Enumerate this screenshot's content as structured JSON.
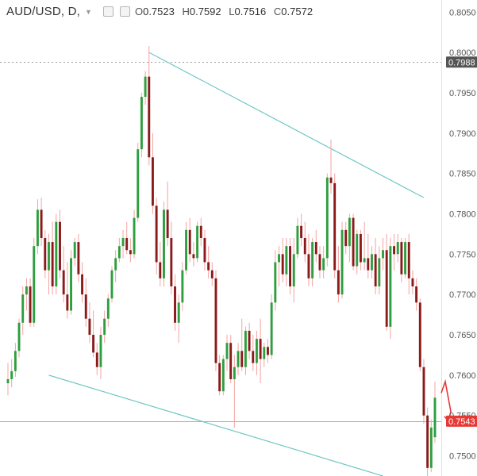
{
  "legend": {
    "symbol": "AUD/USD, D,",
    "o_label": "O",
    "o_value": "0.7523",
    "h_label": "H",
    "h_value": "0.7592",
    "l_label": "L",
    "l_value": "0.7516",
    "c_label": "C",
    "c_value": "0.7572"
  },
  "price_markers": [
    {
      "label": "0.7988",
      "value": 0.7988,
      "line": "dashed",
      "color": "#555555",
      "text_color": "#ffffff"
    },
    {
      "label": "0.7543",
      "value": 0.7543,
      "line": "solid",
      "color": "#e53935",
      "text_color": "#ffffff"
    }
  ],
  "colors": {
    "up": "#2e9e3e",
    "down": "#8b1a1a",
    "wick_up": "#f4a3a3",
    "wick_down": "#f4a3a3",
    "trendline": "#6fc8c4",
    "arrow": "#e53935",
    "axis_text": "#555555"
  },
  "chart_data": {
    "type": "candlestick",
    "title": "AUD/USD, D,",
    "y_axis": {
      "position": "right",
      "range": [
        0.7475,
        0.8065
      ],
      "ticks": [
        "0.8050",
        "0.8000",
        "0.7950",
        "0.7900",
        "0.7850",
        "0.7800",
        "0.7750",
        "0.7700",
        "0.7650",
        "0.7600",
        "0.7550",
        "0.7500"
      ]
    },
    "grid": false,
    "candles": [
      [
        0.759,
        0.7615,
        0.7575,
        0.7595
      ],
      [
        0.7595,
        0.762,
        0.7585,
        0.7605
      ],
      [
        0.7605,
        0.764,
        0.7598,
        0.763
      ],
      [
        0.763,
        0.767,
        0.7622,
        0.7665
      ],
      [
        0.7665,
        0.771,
        0.765,
        0.77
      ],
      [
        0.77,
        0.772,
        0.768,
        0.771
      ],
      [
        0.771,
        0.772,
        0.766,
        0.7665
      ],
      [
        0.7665,
        0.777,
        0.766,
        0.776
      ],
      [
        0.776,
        0.7818,
        0.775,
        0.7805
      ],
      [
        0.7805,
        0.782,
        0.776,
        0.777
      ],
      [
        0.777,
        0.778,
        0.772,
        0.773
      ],
      [
        0.773,
        0.7775,
        0.77,
        0.7765
      ],
      [
        0.7765,
        0.779,
        0.77,
        0.771
      ],
      [
        0.771,
        0.78,
        0.77,
        0.779
      ],
      [
        0.779,
        0.7805,
        0.772,
        0.773
      ],
      [
        0.773,
        0.776,
        0.769,
        0.77
      ],
      [
        0.77,
        0.774,
        0.767,
        0.768
      ],
      [
        0.768,
        0.7755,
        0.7675,
        0.7745
      ],
      [
        0.7745,
        0.777,
        0.7735,
        0.7765
      ],
      [
        0.7765,
        0.7775,
        0.7715,
        0.7725
      ],
      [
        0.7725,
        0.774,
        0.769,
        0.77
      ],
      [
        0.77,
        0.772,
        0.766,
        0.767
      ],
      [
        0.767,
        0.769,
        0.764,
        0.765
      ],
      [
        0.765,
        0.768,
        0.7622,
        0.7628
      ],
      [
        0.7628,
        0.764,
        0.76,
        0.761
      ],
      [
        0.761,
        0.766,
        0.7595,
        0.765
      ],
      [
        0.765,
        0.768,
        0.764,
        0.767
      ],
      [
        0.767,
        0.77,
        0.766,
        0.7695
      ],
      [
        0.7695,
        0.7735,
        0.769,
        0.773
      ],
      [
        0.773,
        0.7755,
        0.7715,
        0.7745
      ],
      [
        0.7745,
        0.777,
        0.774,
        0.776
      ],
      [
        0.776,
        0.778,
        0.7745,
        0.777
      ],
      [
        0.777,
        0.779,
        0.775,
        0.7755
      ],
      [
        0.7755,
        0.777,
        0.774,
        0.775
      ],
      [
        0.775,
        0.7805,
        0.7745,
        0.7795
      ],
      [
        0.7795,
        0.7888,
        0.779,
        0.788
      ],
      [
        0.788,
        0.795,
        0.787,
        0.7945
      ],
      [
        0.7945,
        0.7977,
        0.7935,
        0.797
      ],
      [
        0.797,
        0.8008,
        0.786,
        0.787
      ],
      [
        0.787,
        0.79,
        0.78,
        0.781
      ],
      [
        0.781,
        0.782,
        0.7725,
        0.774
      ],
      [
        0.774,
        0.7765,
        0.771,
        0.772
      ],
      [
        0.772,
        0.7815,
        0.771,
        0.7805
      ],
      [
        0.7805,
        0.784,
        0.776,
        0.777
      ],
      [
        0.777,
        0.779,
        0.77,
        0.771
      ],
      [
        0.771,
        0.7725,
        0.7655,
        0.7665
      ],
      [
        0.7665,
        0.77,
        0.764,
        0.769
      ],
      [
        0.769,
        0.774,
        0.768,
        0.773
      ],
      [
        0.773,
        0.779,
        0.7725,
        0.778
      ],
      [
        0.778,
        0.7795,
        0.774,
        0.775
      ],
      [
        0.775,
        0.7765,
        0.7735,
        0.7745
      ],
      [
        0.7745,
        0.779,
        0.774,
        0.7785
      ],
      [
        0.7785,
        0.7795,
        0.776,
        0.777
      ],
      [
        0.777,
        0.778,
        0.773,
        0.774
      ],
      [
        0.774,
        0.776,
        0.772,
        0.773
      ],
      [
        0.773,
        0.774,
        0.771,
        0.772
      ],
      [
        0.772,
        0.773,
        0.7605,
        0.7615
      ],
      [
        0.7615,
        0.7625,
        0.7575,
        0.758
      ],
      [
        0.758,
        0.7625,
        0.7575,
        0.762
      ],
      [
        0.762,
        0.765,
        0.7605,
        0.764
      ],
      [
        0.764,
        0.765,
        0.759,
        0.7595
      ],
      [
        0.7595,
        0.7625,
        0.7535,
        0.761
      ],
      [
        0.761,
        0.764,
        0.76,
        0.763
      ],
      [
        0.763,
        0.767,
        0.7605,
        0.761
      ],
      [
        0.761,
        0.766,
        0.76,
        0.7655
      ],
      [
        0.7655,
        0.7665,
        0.762,
        0.763
      ],
      [
        0.763,
        0.765,
        0.7605,
        0.7615
      ],
      [
        0.7615,
        0.7655,
        0.76,
        0.7645
      ],
      [
        0.7645,
        0.767,
        0.759,
        0.762
      ],
      [
        0.762,
        0.764,
        0.761,
        0.7635
      ],
      [
        0.7635,
        0.7645,
        0.7615,
        0.7625
      ],
      [
        0.7625,
        0.77,
        0.762,
        0.769
      ],
      [
        0.769,
        0.7755,
        0.768,
        0.774
      ],
      [
        0.774,
        0.776,
        0.771,
        0.775
      ],
      [
        0.775,
        0.777,
        0.7715,
        0.7725
      ],
      [
        0.7725,
        0.777,
        0.771,
        0.776
      ],
      [
        0.776,
        0.777,
        0.77,
        0.771
      ],
      [
        0.771,
        0.777,
        0.769,
        0.775
      ],
      [
        0.775,
        0.7795,
        0.7745,
        0.7785
      ],
      [
        0.7785,
        0.78,
        0.776,
        0.777
      ],
      [
        0.777,
        0.779,
        0.774,
        0.775
      ],
      [
        0.775,
        0.7775,
        0.771,
        0.772
      ],
      [
        0.772,
        0.777,
        0.771,
        0.7765
      ],
      [
        0.7765,
        0.778,
        0.774,
        0.775
      ],
      [
        0.775,
        0.776,
        0.772,
        0.773
      ],
      [
        0.773,
        0.776,
        0.772,
        0.7745
      ],
      [
        0.7745,
        0.785,
        0.7735,
        0.7845
      ],
      [
        0.7845,
        0.7892,
        0.7825,
        0.7838
      ],
      [
        0.7838,
        0.785,
        0.772,
        0.773
      ],
      [
        0.773,
        0.776,
        0.769,
        0.77
      ],
      [
        0.77,
        0.779,
        0.7695,
        0.778
      ],
      [
        0.778,
        0.779,
        0.775,
        0.776
      ],
      [
        0.776,
        0.78,
        0.774,
        0.7795
      ],
      [
        0.7795,
        0.78,
        0.773,
        0.7735
      ],
      [
        0.7735,
        0.778,
        0.7725,
        0.7775
      ],
      [
        0.7775,
        0.778,
        0.773,
        0.774
      ],
      [
        0.774,
        0.779,
        0.773,
        0.7745
      ],
      [
        0.7745,
        0.7775,
        0.772,
        0.773
      ],
      [
        0.773,
        0.776,
        0.772,
        0.775
      ],
      [
        0.775,
        0.777,
        0.77,
        0.771
      ],
      [
        0.771,
        0.776,
        0.77,
        0.7745
      ],
      [
        0.7745,
        0.777,
        0.773,
        0.7755
      ],
      [
        0.7755,
        0.7775,
        0.7655,
        0.766
      ],
      [
        0.766,
        0.777,
        0.7645,
        0.776
      ],
      [
        0.776,
        0.7775,
        0.773,
        0.775
      ],
      [
        0.775,
        0.7775,
        0.774,
        0.7765
      ],
      [
        0.7765,
        0.777,
        0.7715,
        0.7725
      ],
      [
        0.7725,
        0.777,
        0.772,
        0.7765
      ],
      [
        0.7765,
        0.7775,
        0.77,
        0.772
      ],
      [
        0.772,
        0.773,
        0.77,
        0.771
      ],
      [
        0.771,
        0.772,
        0.768,
        0.769
      ],
      [
        0.769,
        0.7695,
        0.7605,
        0.761
      ],
      [
        0.761,
        0.762,
        0.754,
        0.755
      ],
      [
        0.755,
        0.756,
        0.7475,
        0.7485
      ],
      [
        0.7485,
        0.7545,
        0.748,
        0.7535
      ],
      [
        0.7523,
        0.7592,
        0.7516,
        0.7572
      ]
    ],
    "trendlines": [
      {
        "from": [
          38,
          0.8
        ],
        "to": [
          112,
          0.782
        ]
      },
      {
        "from": [
          11,
          0.76
        ],
        "to": [
          101,
          0.7475
        ]
      }
    ],
    "annotation": {
      "type": "arrow",
      "color": "#e53935"
    }
  }
}
